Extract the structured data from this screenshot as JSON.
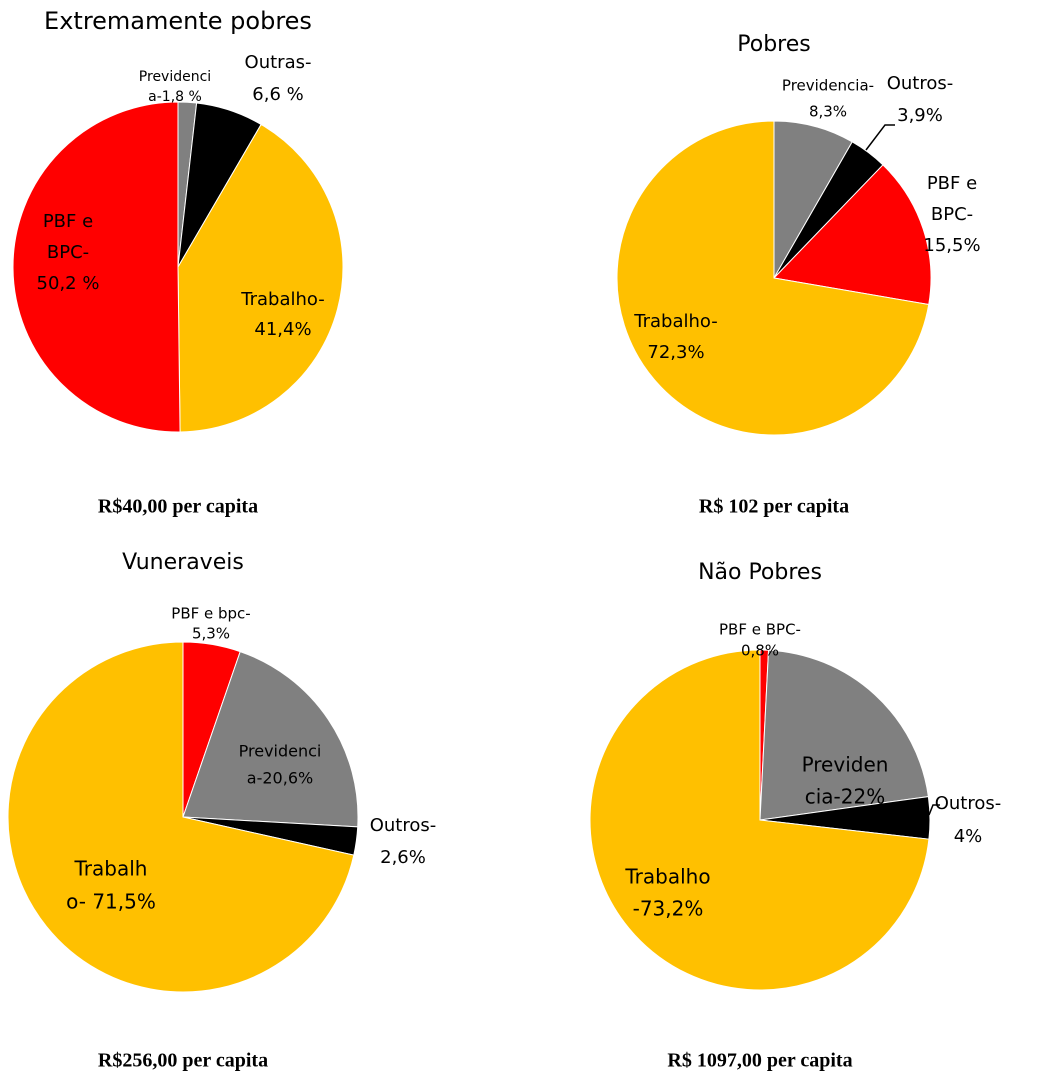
{
  "chart_data": [
    {
      "type": "pie",
      "title": "Extremamente pobres",
      "caption": "R$40,00 per capita",
      "values": [
        1.8,
        6.6,
        41.4,
        50.2
      ],
      "value_labels": [
        [
          "Previdenci",
          "a-1,8 %"
        ],
        [
          "Outras-",
          "6,6 %"
        ],
        [
          "Trabalho-",
          "41,4%"
        ],
        [
          "PBF e",
          "BPC-",
          "50,2 %"
        ]
      ],
      "colors": [
        "#808080",
        "#000000",
        "#ffc000",
        "#ff0000"
      ]
    },
    {
      "type": "pie",
      "title": "Pobres",
      "caption": "R$ 102 per capita",
      "values": [
        8.3,
        3.9,
        15.5,
        72.3
      ],
      "value_labels": [
        [
          "Previdencia-",
          "8,3%"
        ],
        [
          "Outros-",
          "3,9%"
        ],
        [
          "PBF e",
          "BPC-",
          "15,5%"
        ],
        [
          "Trabalho-",
          "72,3%"
        ]
      ],
      "colors": [
        "#808080",
        "#000000",
        "#ff0000",
        "#ffc000"
      ]
    },
    {
      "type": "pie",
      "title": "Vuneraveis",
      "caption": "R$256,00 per capita",
      "values": [
        5.3,
        20.6,
        2.6,
        71.5
      ],
      "value_labels": [
        [
          "PBF e bpc-",
          "5,3%"
        ],
        [
          "Previdenci",
          "a-20,6%"
        ],
        [
          "Outros-",
          "2,6%"
        ],
        [
          "Trabalh",
          "o- 71,5%"
        ]
      ],
      "colors": [
        "#ff0000",
        "#808080",
        "#000000",
        "#ffc000"
      ]
    },
    {
      "type": "pie",
      "title": "Não Pobres",
      "caption": "R$ 1097,00 per capita",
      "values": [
        0.8,
        22,
        4,
        73.2
      ],
      "value_labels": [
        [
          "PBF e BPC-",
          "0,8%"
        ],
        [
          "Previden",
          "cia-22%"
        ],
        [
          "Outros-",
          "4%"
        ],
        [
          "Trabalho",
          "-73,2%"
        ]
      ],
      "colors": [
        "#ff0000",
        "#808080",
        "#000000",
        "#ffc000"
      ]
    }
  ]
}
